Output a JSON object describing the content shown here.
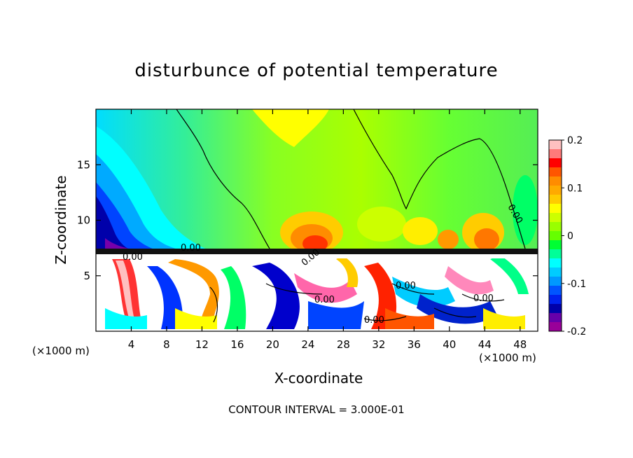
{
  "chart_data": {
    "type": "heatmap",
    "title": "disturbunce of potential temperature",
    "xlabel": "X-coordinate",
    "ylabel": "Z-coordinate",
    "x_unit_left": "(×1000 m)",
    "x_unit_right": "(×1000 m)",
    "xlim": [
      0,
      50
    ],
    "ylim": [
      0,
      20
    ],
    "x_ticks": [
      4,
      8,
      12,
      16,
      20,
      24,
      28,
      32,
      36,
      40,
      44,
      48
    ],
    "y_ticks": [
      5,
      10,
      15
    ],
    "colorbar": {
      "min": -0.2,
      "max": 0.2,
      "tick_labels": [
        "0.2",
        "0.1",
        "0",
        "-0.1",
        "-0.2"
      ],
      "tick_values": [
        0.2,
        0.1,
        0,
        -0.1,
        -0.2
      ],
      "colors": [
        "#ffc0c0",
        "#ff7a7a",
        "#ff0000",
        "#ff5500",
        "#ff8c00",
        "#ffaa00",
        "#ffcc00",
        "#ffff00",
        "#ccff00",
        "#99ff00",
        "#66ff00",
        "#00ff33",
        "#00ff99",
        "#00ffff",
        "#00ccff",
        "#0099ff",
        "#0055ff",
        "#0022ee",
        "#0000aa",
        "#6600aa",
        "#990099"
      ]
    },
    "contour_labels": [
      "0.00",
      "0.00",
      "0.00",
      "0.00",
      "0.00",
      "0.00",
      "0.00",
      "0.00"
    ],
    "contour_interval": "CONTOUR INTERVAL = 3.000E-01",
    "grid": false
  }
}
